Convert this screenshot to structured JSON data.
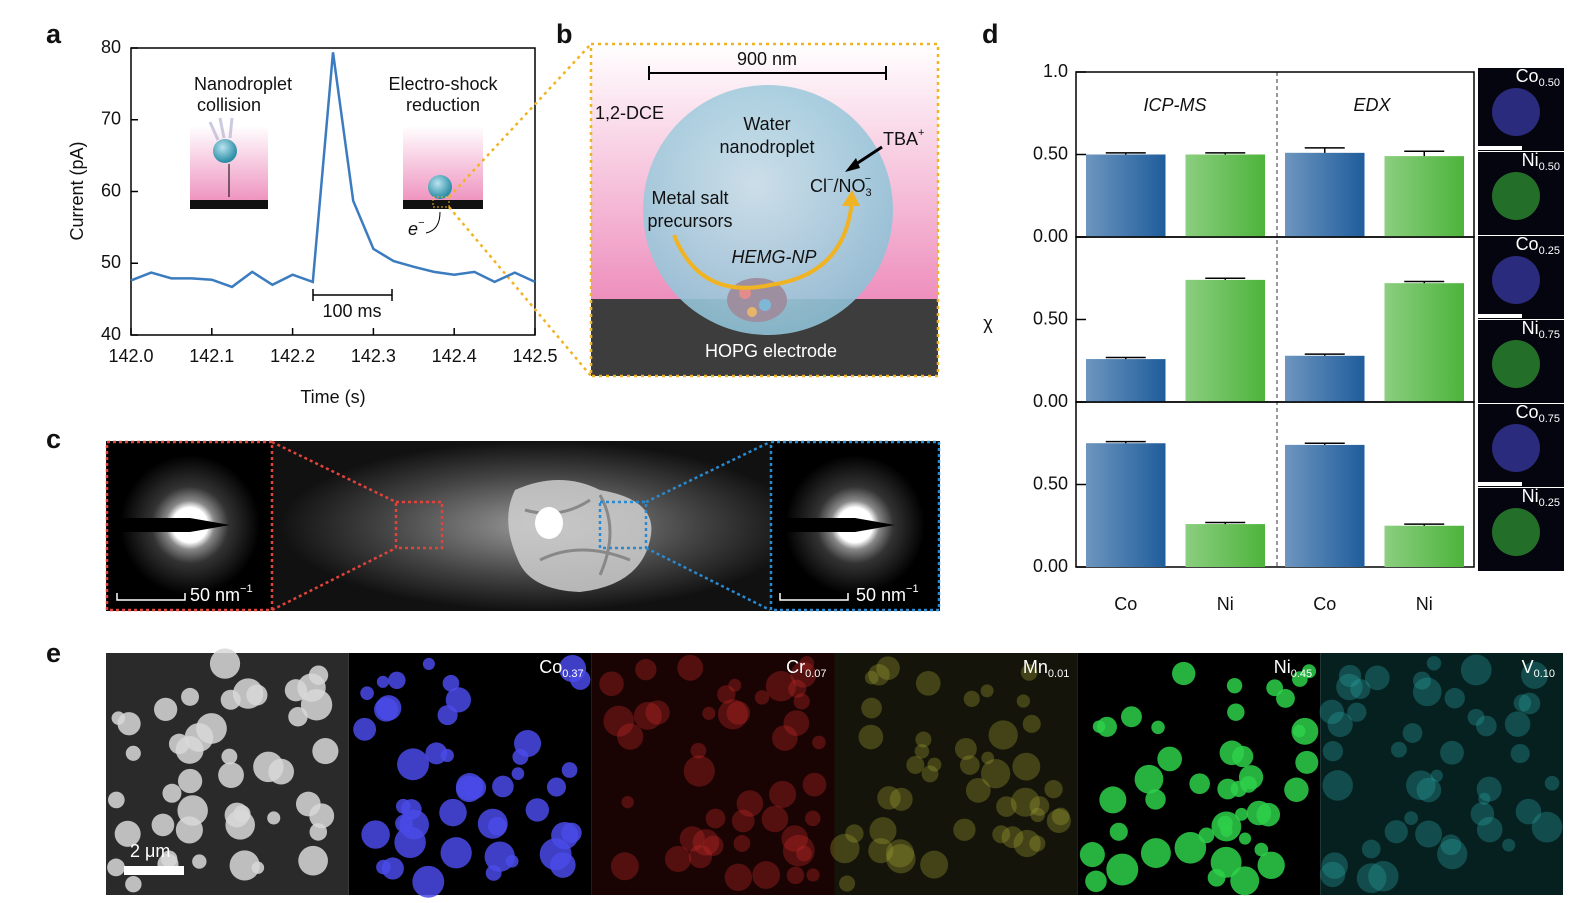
{
  "panel_labels": [
    "a",
    "b",
    "c",
    "d",
    "e"
  ],
  "chart_data": [
    {
      "type": "line",
      "xlabel": "Time (s)",
      "ylabel": "Current (pA)",
      "x": [
        142,
        142.025,
        142.05,
        142.075,
        142.1,
        142.125,
        142.15,
        142.175,
        142.2,
        142.225,
        142.25,
        142.275,
        142.3,
        142.325,
        142.35,
        142.375,
        142.4,
        142.425,
        142.45,
        142.475,
        142.5
      ],
      "series": [
        {
          "color": "#3b7bbf",
          "values": [
            47.6,
            48.7,
            47.9,
            47.9,
            47.7,
            46.7,
            48.8,
            47.0,
            48.4,
            47.4,
            79.4,
            58.7,
            52.0,
            50.3,
            49.5,
            48.8,
            48.4,
            48.8,
            47.4,
            48.7,
            47.4
          ]
        }
      ],
      "xlim": [
        142,
        142.5
      ],
      "ylim": [
        40,
        80
      ],
      "xticks": [
        {
          "value": 142,
          "label": "142.0"
        },
        142.1,
        142.2,
        142.3,
        142.4,
        142.5
      ],
      "yticks": [
        40,
        50,
        60,
        70,
        80
      ],
      "annotations": {
        "left_inset": [
          "Nanodroplet",
          "collision"
        ],
        "right_inset": [
          "Electro-shock",
          "reduction"
        ],
        "scale_bar": "100 ms",
        "electron": {
          "text": "e",
          "sup": "−"
        }
      }
    },
    {
      "type": "bar",
      "ylabel": "χ",
      "categories": [
        "Co",
        "Ni",
        "Co",
        "Ni"
      ],
      "sections": [
        "ICP-MS",
        "EDX"
      ],
      "colors": [
        "#1f5d9c",
        "#4db43b",
        "#1f5d9c",
        "#4db43b"
      ],
      "ylim": [
        0,
        1
      ],
      "panels": [
        {
          "values": [
            0.5,
            0.5,
            0.51,
            0.49
          ],
          "errors": [
            0.01,
            0.01,
            0.03,
            0.03
          ],
          "yticks": [
            {
              "value": 0,
              "label": "0.00"
            },
            {
              "value": 0.5,
              "label": "0.50"
            },
            {
              "value": 1,
              "label": "1.0"
            }
          ]
        },
        {
          "values": [
            0.26,
            0.74,
            0.28,
            0.72
          ],
          "errors": [
            0.01,
            0.01,
            0.01,
            0.01
          ],
          "yticks": [
            {
              "value": 0,
              "label": "0.00"
            },
            {
              "value": 0.5,
              "label": "0.50"
            }
          ]
        },
        {
          "values": [
            0.75,
            0.26,
            0.74,
            0.25
          ],
          "errors": [
            0.01,
            0.01,
            0.01,
            0.01
          ],
          "yticks": [
            {
              "value": 0,
              "label": "0.00"
            },
            {
              "value": 0.5,
              "label": "0.50"
            }
          ]
        }
      ],
      "maps": [
        {
          "element": "Co",
          "sub": "0.50"
        },
        {
          "element": "Ni",
          "sub": "0.50"
        },
        {
          "element": "Co",
          "sub": "0.25"
        },
        {
          "element": "Ni",
          "sub": "0.75"
        },
        {
          "element": "Co",
          "sub": "0.75"
        },
        {
          "element": "Ni",
          "sub": "0.25"
        }
      ]
    }
  ],
  "diagram_b": {
    "scale": "900 nm",
    "solvent": "1,2-DCE",
    "droplet": [
      "Water",
      "nanodroplet"
    ],
    "cation": {
      "text": "TBA",
      "sup": "+"
    },
    "anion": {
      "a": "Cl",
      "a_sup": "−",
      "b": "/NO",
      "b_sub": "3",
      "b_sup": "−"
    },
    "precursors": [
      "Metal salt",
      "precursors"
    ],
    "particle": "HEMG-NP",
    "electrode": "HOPG electrode"
  },
  "images_c": {
    "scale": {
      "text": "50 nm",
      "sup": "−1"
    }
  },
  "maps_e": {
    "labels": [
      {
        "element": "Co",
        "sub": "0.37"
      },
      {
        "element": "Cr",
        "sub": "0.07"
      },
      {
        "element": "Mn",
        "sub": "0.01"
      },
      {
        "element": "Ni",
        "sub": "0.45"
      },
      {
        "element": "V",
        "sub": "0.10"
      }
    ],
    "scale": "2 μm"
  }
}
